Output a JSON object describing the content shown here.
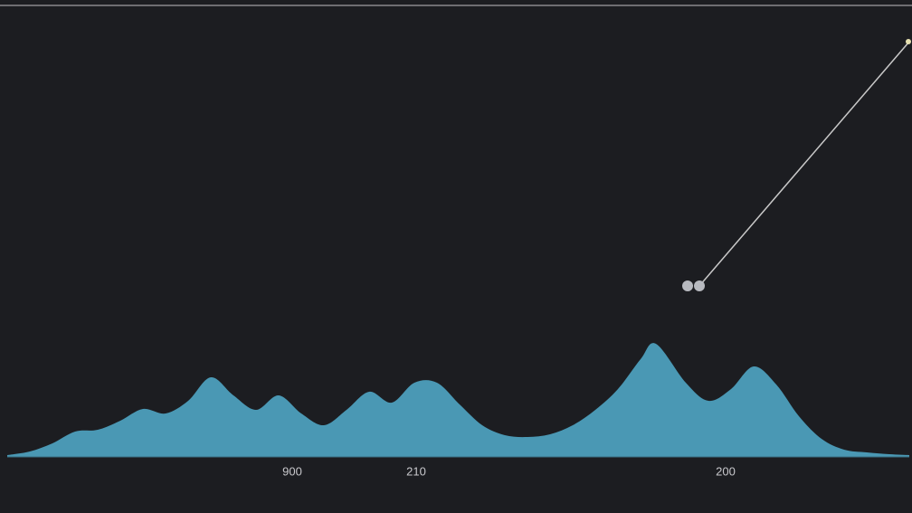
{
  "chart_data": {
    "type": "area",
    "color": "#4a98b4",
    "x": [
      8,
      33,
      58,
      83,
      108,
      133,
      158,
      183,
      208,
      233,
      258,
      283,
      308,
      333,
      358,
      383,
      408,
      433,
      458,
      483,
      508,
      533,
      558,
      583,
      608,
      633,
      658,
      683,
      708,
      725,
      758,
      783,
      808,
      833,
      858,
      883,
      908,
      933,
      958,
      983,
      1005
    ],
    "values": [
      2,
      6,
      15,
      28,
      30,
      40,
      53,
      48,
      62,
      88,
      68,
      52,
      68,
      48,
      35,
      52,
      72,
      60,
      82,
      82,
      58,
      35,
      24,
      22,
      25,
      35,
      52,
      75,
      108,
      125,
      82,
      62,
      75,
      100,
      80,
      45,
      20,
      8,
      5,
      3,
      2
    ],
    "xlim": [
      8,
      1005
    ],
    "ylim": [
      0,
      500
    ],
    "xticks": [
      {
        "value": 323,
        "label": "900"
      },
      {
        "value": 460,
        "label": "210"
      },
      {
        "value": 802,
        "label": "200"
      }
    ]
  }
}
